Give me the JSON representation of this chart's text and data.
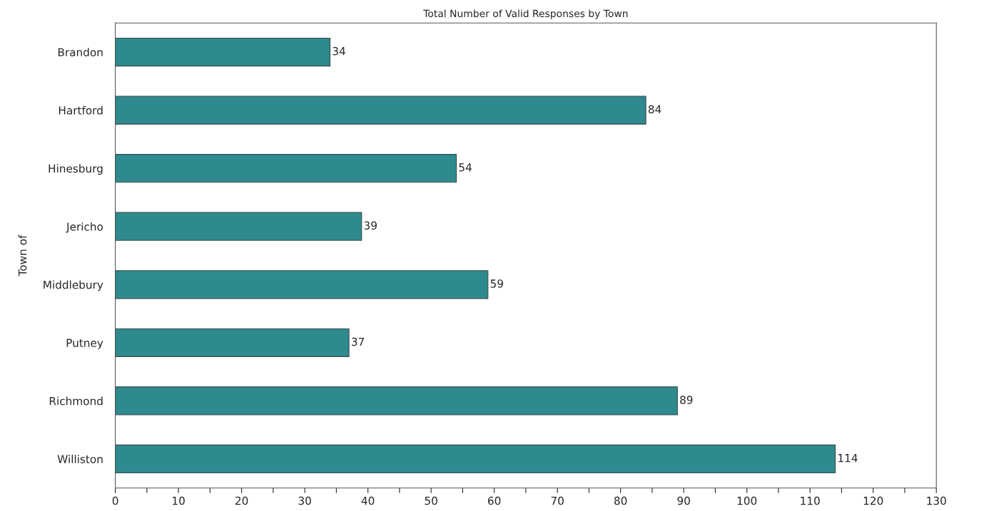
{
  "chart_data": {
    "type": "bar",
    "orientation": "horizontal",
    "title": "Total Number of Valid Responses by Town",
    "ylabel": "Town of",
    "categories": [
      "Brandon",
      "Hartford",
      "Hinesburg",
      "Jericho",
      "Middlebury",
      "Putney",
      "Richmond",
      "Williston"
    ],
    "values": [
      34,
      84,
      54,
      39,
      59,
      37,
      89,
      114
    ],
    "color": "#2e8a8e",
    "data_labels": true,
    "grid": false,
    "legend": false,
    "xlim": [
      0,
      130
    ],
    "xticks": [
      0,
      {
        "value": 5,
        "label": null
      },
      10,
      {
        "value": 15,
        "label": null
      },
      20,
      {
        "value": 25,
        "label": null
      },
      30,
      {
        "value": 35,
        "label": null
      },
      40,
      {
        "value": 45,
        "label": null
      },
      50,
      {
        "value": 55,
        "label": null
      },
      60,
      {
        "value": 65,
        "label": null
      },
      70,
      {
        "value": 75,
        "label": null
      },
      80,
      {
        "value": 85,
        "label": null
      },
      90,
      {
        "value": 95,
        "label": null
      },
      100,
      {
        "value": 105,
        "label": null
      },
      110,
      {
        "value": 115,
        "label": null
      },
      120,
      {
        "value": 125,
        "label": null
      },
      130
    ]
  }
}
